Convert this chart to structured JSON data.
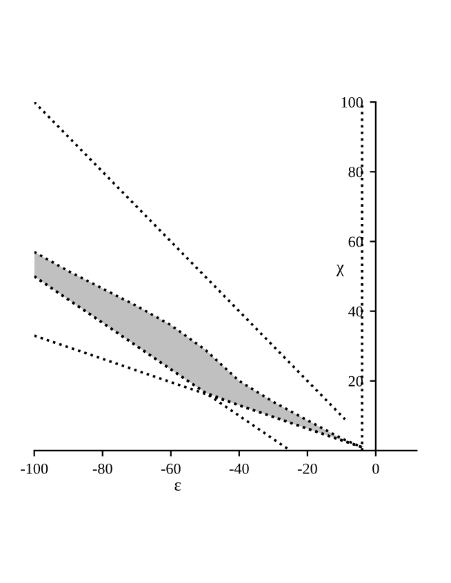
{
  "chart_data": {
    "type": "line",
    "xlabel": "ε",
    "ylabel": "χ",
    "xlim": [
      -100,
      12
    ],
    "ylim": [
      0,
      100
    ],
    "xticks": [
      -100,
      -80,
      -60,
      -40,
      -20,
      0
    ],
    "yticks": [
      20,
      40,
      60,
      80,
      100
    ],
    "grid": false,
    "legend": false,
    "line_style": "dotted",
    "marker": "none",
    "series": [
      {
        "color": "#000000",
        "x": [
          -100,
          -90,
          -80,
          -70,
          -60,
          -50,
          -40,
          -30,
          -20,
          -10,
          -4
        ],
        "values": [
          50,
          43.3,
          36.7,
          30,
          23.3,
          16.7,
          13,
          9.7,
          6.3,
          3,
          1
        ],
        "lower": [
          50,
          43.3,
          36.7,
          30,
          23.3,
          16.7,
          13,
          9.7,
          6.3,
          3,
          1
        ],
        "upper": [
          57,
          51.5,
          46.5,
          41.5,
          36,
          29,
          20,
          14,
          8.7,
          3.5,
          1
        ]
      },
      {
        "color": "#000000",
        "x": [
          -100,
          -90,
          -80,
          -70,
          -60,
          -50,
          -40,
          -30,
          -20,
          -10,
          -4
        ],
        "values": [
          57,
          51.5,
          46.5,
          41.5,
          36,
          29,
          20,
          14,
          8.7,
          3.5,
          1
        ]
      },
      {
        "color": "#000000",
        "x": [
          -100,
          -9
        ],
        "values": [
          100,
          9
        ]
      },
      {
        "color": "#000000",
        "x": [
          -100,
          -25
        ],
        "values": [
          50,
          0
        ]
      },
      {
        "color": "#000000",
        "x": [
          -100,
          -4
        ],
        "values": [
          33,
          1
        ]
      }
    ],
    "ref_lines": [
      {
        "axis": "x",
        "value": -4,
        "color": "#000000",
        "line_style": "dotted"
      }
    ]
  }
}
